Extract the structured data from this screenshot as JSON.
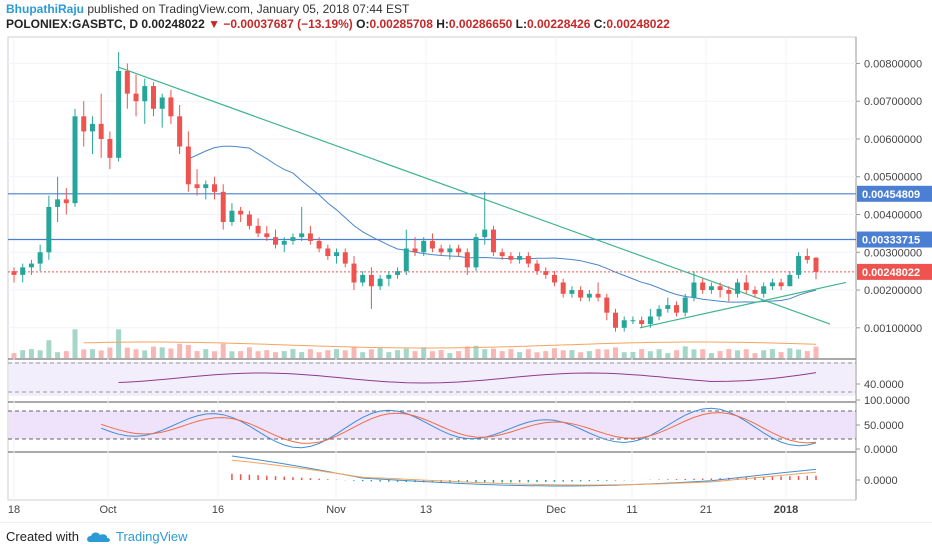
{
  "header": {
    "author": "BhupathiRaju",
    "published": "published on TradingView.com, January 05, 2018 07:44 EST"
  },
  "ticker": {
    "symbol": "POLONIEX:GASBTC, D",
    "last": "0.00248022",
    "change": "−0.00037687 (−13.19%)",
    "o_label": "O:",
    "o": "0.00285708",
    "h_label": "H:",
    "h": "0.00286650",
    "l_label": "L:",
    "l": "0.00228426",
    "c_label": "C:",
    "c": "0.00248022"
  },
  "footer": {
    "created": "Created with",
    "brand": "TradingView"
  },
  "colors": {
    "up": "#26a69a",
    "down": "#ef5350",
    "upVol": "#a5d6c8",
    "downVol": "#f8b7b5",
    "trend": "#3fb68a",
    "hline": "#4a7fd4",
    "ma": "#4a86c8"
  },
  "chart_data": [
    {
      "type": "candlestick",
      "x_ticks": [
        "18",
        "Oct",
        "16",
        "Nov",
        "13",
        "Dec",
        "11",
        "21",
        "2018"
      ],
      "y_ticks": [
        "0.00800000",
        "0.00700000",
        "0.00600000",
        "0.00500000",
        "0.00400000",
        "0.00300000",
        "0.00200000",
        "0.00100000"
      ],
      "ylim": [
        0.0002,
        0.0087
      ],
      "price_labels": [
        {
          "value": 0.00454809,
          "text": "0.00454809",
          "kind": "hline"
        },
        {
          "value": 0.00333715,
          "text": "0.00333715",
          "kind": "hline"
        },
        {
          "value": 0.00248022,
          "text": "0.00248022",
          "kind": "last"
        }
      ],
      "candles": [
        [
          0.0025,
          0.0026,
          0.0022,
          0.0024
        ],
        [
          0.0024,
          0.0027,
          0.0022,
          0.0026
        ],
        [
          0.0026,
          0.0028,
          0.0024,
          0.0027
        ],
        [
          0.0027,
          0.0032,
          0.0025,
          0.003
        ],
        [
          0.003,
          0.0045,
          0.0028,
          0.0042
        ],
        [
          0.0042,
          0.005,
          0.0038,
          0.0044
        ],
        [
          0.0044,
          0.0047,
          0.004,
          0.0043
        ],
        [
          0.0043,
          0.0068,
          0.0042,
          0.0066
        ],
        [
          0.0066,
          0.007,
          0.0058,
          0.0062
        ],
        [
          0.0062,
          0.0066,
          0.0056,
          0.0064
        ],
        [
          0.0064,
          0.0072,
          0.0055,
          0.006
        ],
        [
          0.006,
          0.0062,
          0.0052,
          0.0055
        ],
        [
          0.0055,
          0.0083,
          0.0054,
          0.0078
        ],
        [
          0.0078,
          0.008,
          0.0068,
          0.0072
        ],
        [
          0.0072,
          0.0077,
          0.0066,
          0.007
        ],
        [
          0.007,
          0.0076,
          0.0064,
          0.0074
        ],
        [
          0.0074,
          0.0075,
          0.0066,
          0.0068
        ],
        [
          0.0068,
          0.0072,
          0.0063,
          0.0071
        ],
        [
          0.0071,
          0.0073,
          0.0064,
          0.0066
        ],
        [
          0.0066,
          0.0069,
          0.0056,
          0.0058
        ],
        [
          0.0058,
          0.0062,
          0.0046,
          0.0048
        ],
        [
          0.0048,
          0.0052,
          0.0045,
          0.0047
        ],
        [
          0.0047,
          0.0049,
          0.0044,
          0.0048
        ],
        [
          0.0048,
          0.005,
          0.0044,
          0.0046
        ],
        [
          0.0046,
          0.0048,
          0.0036,
          0.0038
        ],
        [
          0.0038,
          0.0043,
          0.0037,
          0.0041
        ],
        [
          0.0041,
          0.0042,
          0.0038,
          0.004
        ],
        [
          0.004,
          0.0041,
          0.0036,
          0.0037
        ],
        [
          0.0037,
          0.0039,
          0.0034,
          0.0035
        ],
        [
          0.0035,
          0.0037,
          0.0033,
          0.0034
        ],
        [
          0.0034,
          0.0036,
          0.0031,
          0.0032
        ],
        [
          0.0032,
          0.0034,
          0.003,
          0.0033
        ],
        [
          0.0033,
          0.0035,
          0.0032,
          0.0034
        ],
        [
          0.0034,
          0.0042,
          0.0033,
          0.0035
        ],
        [
          0.0035,
          0.0037,
          0.0032,
          0.0033
        ],
        [
          0.0033,
          0.0034,
          0.003,
          0.0031
        ],
        [
          0.0031,
          0.0032,
          0.0028,
          0.0029
        ],
        [
          0.0029,
          0.0031,
          0.0027,
          0.003
        ],
        [
          0.003,
          0.0031,
          0.0026,
          0.0027
        ],
        [
          0.0027,
          0.0029,
          0.002,
          0.0022
        ],
        [
          0.0022,
          0.0025,
          0.0021,
          0.0024
        ],
        [
          0.0024,
          0.0026,
          0.0015,
          0.0021
        ],
        [
          0.0021,
          0.0024,
          0.002,
          0.0023
        ],
        [
          0.0023,
          0.0025,
          0.0021,
          0.0024
        ],
        [
          0.0024,
          0.0026,
          0.0023,
          0.0025
        ],
        [
          0.0025,
          0.0036,
          0.0024,
          0.0031
        ],
        [
          0.0031,
          0.0034,
          0.0029,
          0.003
        ],
        [
          0.003,
          0.0034,
          0.0029,
          0.0033
        ],
        [
          0.0033,
          0.0035,
          0.003,
          0.0031
        ],
        [
          0.0031,
          0.0032,
          0.0029,
          0.003
        ],
        [
          0.003,
          0.0032,
          0.0028,
          0.0031
        ],
        [
          0.0031,
          0.0032,
          0.0029,
          0.003
        ],
        [
          0.003,
          0.0031,
          0.0024,
          0.0026
        ],
        [
          0.0026,
          0.0035,
          0.0025,
          0.0034
        ],
        [
          0.0034,
          0.0046,
          0.0032,
          0.0036
        ],
        [
          0.0036,
          0.0037,
          0.0029,
          0.003
        ],
        [
          0.003,
          0.0031,
          0.0028,
          0.0029
        ],
        [
          0.0029,
          0.003,
          0.0027,
          0.0028
        ],
        [
          0.0028,
          0.003,
          0.0027,
          0.0029
        ],
        [
          0.0029,
          0.003,
          0.0026,
          0.0027
        ],
        [
          0.0027,
          0.0028,
          0.0024,
          0.0025
        ],
        [
          0.0025,
          0.0026,
          0.0023,
          0.0024
        ],
        [
          0.0024,
          0.0025,
          0.0021,
          0.0022
        ],
        [
          0.0022,
          0.0023,
          0.0018,
          0.0019
        ],
        [
          0.0019,
          0.0021,
          0.0018,
          0.002
        ],
        [
          0.002,
          0.0021,
          0.0017,
          0.0018
        ],
        [
          0.0018,
          0.002,
          0.0017,
          0.0019
        ],
        [
          0.0019,
          0.0022,
          0.0017,
          0.0018
        ],
        [
          0.0018,
          0.0019,
          0.0012,
          0.0014
        ],
        [
          0.0014,
          0.0015,
          0.0009,
          0.001
        ],
        [
          0.001,
          0.0013,
          0.0009,
          0.0012
        ],
        [
          0.0012,
          0.0013,
          0.0011,
          0.0012
        ],
        [
          0.0012,
          0.0013,
          0.001,
          0.0011
        ],
        [
          0.0011,
          0.0015,
          0.001,
          0.0013
        ],
        [
          0.0013,
          0.0016,
          0.0012,
          0.0015
        ],
        [
          0.0015,
          0.0018,
          0.0014,
          0.0016
        ],
        [
          0.0016,
          0.0017,
          0.0013,
          0.0014
        ],
        [
          0.0014,
          0.0019,
          0.0013,
          0.0018
        ],
        [
          0.0018,
          0.0025,
          0.0017,
          0.0022
        ],
        [
          0.0022,
          0.0023,
          0.0019,
          0.002
        ],
        [
          0.002,
          0.0022,
          0.0019,
          0.0021
        ],
        [
          0.0021,
          0.0022,
          0.0018,
          0.002
        ],
        [
          0.002,
          0.0021,
          0.0017,
          0.0019
        ],
        [
          0.0019,
          0.0023,
          0.0018,
          0.0022
        ],
        [
          0.0022,
          0.0024,
          0.0019,
          0.002
        ],
        [
          0.002,
          0.0021,
          0.0018,
          0.0019
        ],
        [
          0.0019,
          0.0022,
          0.0018,
          0.0021
        ],
        [
          0.0021,
          0.0023,
          0.002,
          0.0022
        ],
        [
          0.0022,
          0.0023,
          0.002,
          0.0021
        ],
        [
          0.0021,
          0.0025,
          0.0021,
          0.0024
        ],
        [
          0.0024,
          0.003,
          0.0023,
          0.0029
        ],
        [
          0.0029,
          0.0031,
          0.0027,
          0.0028
        ],
        [
          0.00285708,
          0.0028665,
          0.00228426,
          0.00248022
        ]
      ],
      "indicators": {
        "rsi": {
          "level": "40.0000"
        },
        "stoch": {
          "levels": [
            "100.0000",
            "50.0000",
            "0.0000"
          ]
        },
        "macd": {
          "level": "0.0000"
        }
      }
    }
  ]
}
